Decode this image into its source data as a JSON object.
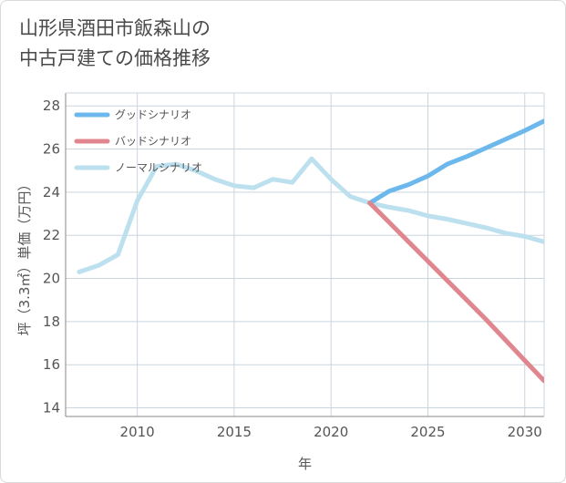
{
  "title_line1": "山形県酒田市飯森山の",
  "title_line2": "中古戸建ての価格推移",
  "chart_data": {
    "type": "line",
    "xlabel": "年",
    "ylabel": "坪（3.3㎡）単価（万円）",
    "xlim": [
      2006.3,
      2031
    ],
    "ylim": [
      13.6,
      28.6
    ],
    "xticks": [
      2010,
      2015,
      2020,
      2025,
      2030
    ],
    "yticks": [
      14,
      16,
      18,
      20,
      22,
      24,
      26,
      28
    ],
    "grid": true,
    "legend_position": "top-left",
    "series": [
      {
        "name": "グッドシナリオ",
        "color": "#6cb8ec",
        "x": [
          2022,
          2023,
          2024,
          2025,
          2026,
          2027,
          2028,
          2029,
          2030,
          2031
        ],
        "y": [
          23.5,
          24.05,
          24.35,
          24.75,
          25.3,
          25.65,
          26.05,
          26.45,
          26.85,
          27.3
        ]
      },
      {
        "name": "バッドシナリオ",
        "color": "#e0868f",
        "x": [
          2022,
          2023,
          2024,
          2025,
          2026,
          2027,
          2028,
          2029,
          2030,
          2031
        ],
        "y": [
          23.5,
          22.6,
          21.7,
          20.8,
          19.9,
          19.0,
          18.1,
          17.15,
          16.2,
          15.25
        ]
      },
      {
        "name": "ノーマルシナリオ",
        "color": "#bde0ef",
        "x": [
          2007,
          2008,
          2009,
          2010,
          2011,
          2012,
          2013,
          2014,
          2015,
          2016,
          2017,
          2018,
          2019,
          2020,
          2021,
          2022,
          2023,
          2024,
          2025,
          2026,
          2027,
          2028,
          2029,
          2030,
          2031
        ],
        "y": [
          20.3,
          20.6,
          21.1,
          23.6,
          25.2,
          25.3,
          25.0,
          24.6,
          24.3,
          24.2,
          24.6,
          24.45,
          25.55,
          24.6,
          23.8,
          23.5,
          23.3,
          23.15,
          22.9,
          22.75,
          22.55,
          22.35,
          22.1,
          21.95,
          21.7
        ]
      }
    ]
  }
}
